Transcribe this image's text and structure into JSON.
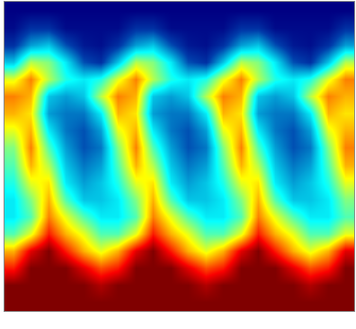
{
  "chart_data": {
    "type": "heatmap",
    "color": "jet",
    "tick_labels": false,
    "grid": false,
    "x": [
      0,
      1,
      2,
      3,
      4,
      5,
      6,
      7,
      8,
      9,
      10,
      11,
      12,
      13,
      14,
      15,
      16,
      17,
      18,
      19
    ],
    "y": [
      0,
      1,
      2,
      3,
      4,
      5,
      6,
      7,
      8,
      9,
      10,
      11,
      12,
      13,
      14,
      15,
      16,
      17
    ],
    "xlim": [
      -0.5,
      19.5
    ],
    "ylim": [
      17.5,
      -0.5
    ],
    "zlim": [
      0,
      1
    ],
    "z": [
      [
        0,
        0,
        0,
        0,
        0,
        0,
        0,
        0,
        0,
        0,
        0,
        0,
        0,
        0,
        0,
        0,
        0,
        0,
        0,
        0
      ],
      [
        0.02,
        0.1,
        0.1,
        0.02,
        0.02,
        0.02,
        0.02,
        0.1,
        0.1,
        0.02,
        0.02,
        0.02,
        0.02,
        0.1,
        0.1,
        0.02,
        0.02,
        0.02,
        0.02,
        0.1
      ],
      [
        0.1,
        0.25,
        0.3,
        0.15,
        0.05,
        0.03,
        0.1,
        0.25,
        0.3,
        0.15,
        0.05,
        0.03,
        0.1,
        0.25,
        0.3,
        0.15,
        0.05,
        0.03,
        0.1,
        0.25
      ],
      [
        0.3,
        0.55,
        0.5,
        0.35,
        0.15,
        0.1,
        0.3,
        0.55,
        0.5,
        0.35,
        0.15,
        0.1,
        0.3,
        0.55,
        0.5,
        0.35,
        0.15,
        0.1,
        0.3,
        0.55
      ],
      [
        0.6,
        0.75,
        0.55,
        0.4,
        0.35,
        0.4,
        0.6,
        0.75,
        0.55,
        0.4,
        0.35,
        0.4,
        0.6,
        0.75,
        0.55,
        0.4,
        0.35,
        0.4,
        0.6,
        0.75
      ],
      [
        0.75,
        0.7,
        0.3,
        0.25,
        0.3,
        0.55,
        0.75,
        0.7,
        0.3,
        0.25,
        0.3,
        0.55,
        0.75,
        0.7,
        0.3,
        0.25,
        0.3,
        0.55,
        0.75,
        0.7
      ],
      [
        0.7,
        0.65,
        0.25,
        0.2,
        0.2,
        0.35,
        0.7,
        0.65,
        0.25,
        0.2,
        0.2,
        0.35,
        0.7,
        0.65,
        0.25,
        0.2,
        0.2,
        0.35,
        0.7,
        0.65
      ],
      [
        0.6,
        0.7,
        0.35,
        0.2,
        0.15,
        0.25,
        0.6,
        0.7,
        0.35,
        0.2,
        0.15,
        0.25,
        0.6,
        0.7,
        0.35,
        0.2,
        0.15,
        0.25,
        0.6,
        0.7
      ],
      [
        0.5,
        0.75,
        0.45,
        0.25,
        0.15,
        0.2,
        0.5,
        0.75,
        0.45,
        0.25,
        0.15,
        0.2,
        0.5,
        0.75,
        0.45,
        0.25,
        0.15,
        0.2,
        0.5,
        0.75
      ],
      [
        0.45,
        0.7,
        0.55,
        0.3,
        0.2,
        0.25,
        0.45,
        0.7,
        0.55,
        0.3,
        0.2,
        0.25,
        0.45,
        0.7,
        0.55,
        0.3,
        0.2,
        0.25,
        0.45,
        0.7
      ],
      [
        0.4,
        0.6,
        0.65,
        0.35,
        0.25,
        0.3,
        0.4,
        0.6,
        0.65,
        0.35,
        0.25,
        0.3,
        0.4,
        0.6,
        0.65,
        0.35,
        0.25,
        0.3,
        0.4,
        0.6
      ],
      [
        0.35,
        0.5,
        0.7,
        0.45,
        0.3,
        0.3,
        0.35,
        0.5,
        0.7,
        0.45,
        0.3,
        0.3,
        0.35,
        0.5,
        0.7,
        0.45,
        0.3,
        0.3,
        0.35,
        0.5
      ],
      [
        0.35,
        0.45,
        0.75,
        0.6,
        0.45,
        0.35,
        0.35,
        0.45,
        0.75,
        0.6,
        0.45,
        0.35,
        0.35,
        0.45,
        0.75,
        0.6,
        0.45,
        0.35,
        0.35,
        0.45
      ],
      [
        0.45,
        0.6,
        0.85,
        0.7,
        0.6,
        0.45,
        0.45,
        0.6,
        0.85,
        0.7,
        0.6,
        0.45,
        0.45,
        0.6,
        0.85,
        0.7,
        0.6,
        0.45,
        0.45,
        0.6
      ],
      [
        0.7,
        0.9,
        1,
        0.85,
        0.7,
        0.6,
        0.7,
        0.9,
        1,
        0.85,
        0.7,
        0.6,
        0.7,
        0.9,
        1,
        0.85,
        0.7,
        0.6,
        0.7,
        0.9
      ],
      [
        0.85,
        1,
        1,
        1,
        0.9,
        0.8,
        0.85,
        1,
        1,
        1,
        0.9,
        0.8,
        0.85,
        1,
        1,
        1,
        0.9,
        0.8,
        0.85,
        1
      ],
      [
        1,
        1,
        1,
        1,
        1,
        0.95,
        1,
        1,
        1,
        1,
        1,
        0.95,
        1,
        1,
        1,
        1,
        1,
        0.95,
        1,
        1
      ],
      [
        1,
        1,
        1,
        1,
        1,
        1,
        1,
        1,
        1,
        1,
        1,
        1,
        1,
        1,
        1,
        1,
        1,
        1,
        1,
        1
      ]
    ]
  }
}
